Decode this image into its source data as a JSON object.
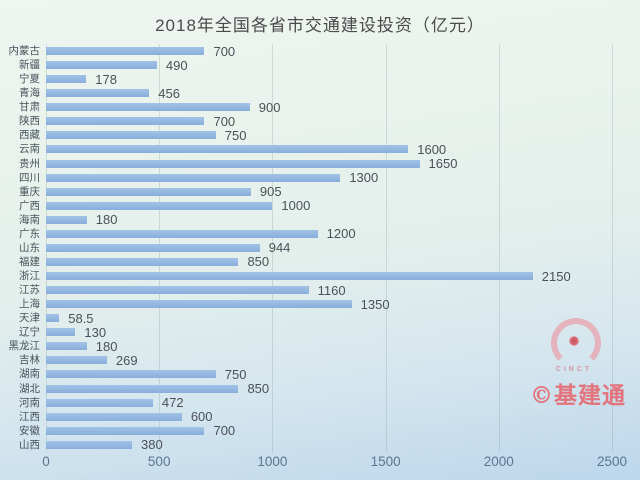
{
  "title": "2018年全国各省市交通建设投资（亿元）",
  "watermark": {
    "logo_name": "cinct-ring-logo",
    "logo_text": "CINCT",
    "label": "©基建通",
    "color": "#e3737c"
  },
  "chart_data": {
    "type": "bar",
    "orientation": "horizontal",
    "title": "2018年全国各省市交通建设投资（亿元）",
    "xlabel": "",
    "ylabel": "",
    "categories": [
      "内蒙古",
      "新疆",
      "宁夏",
      "青海",
      "甘肃",
      "陕西",
      "西藏",
      "云南",
      "贵州",
      "四川",
      "重庆",
      "广西",
      "海南",
      "广东",
      "山东",
      "福建",
      "浙江",
      "江苏",
      "上海",
      "天津",
      "辽宁",
      "黑龙江",
      "吉林",
      "湖南",
      "湖北",
      "河南",
      "江西",
      "安徽",
      "山西"
    ],
    "values": [
      700,
      490,
      178,
      456,
      900,
      700,
      750,
      1600,
      1650,
      1300,
      905,
      1000,
      180,
      1200,
      944,
      850,
      2150,
      1160,
      1350,
      58.5,
      130,
      180,
      269,
      750,
      850,
      472,
      600,
      700,
      380
    ],
    "value_labels": [
      "700",
      "490",
      "178",
      "456",
      "900",
      "700",
      "750",
      "1600",
      "1650",
      "1300",
      "905",
      "1000",
      "180",
      "1200",
      "944",
      "850",
      "2150",
      "1160",
      "1350",
      "58.5",
      "130",
      "180",
      "269",
      "750",
      "850",
      "472",
      "600",
      "700",
      "380"
    ],
    "xlim": [
      0,
      2500
    ],
    "x_ticks": [
      "0",
      "500",
      "1000",
      "1500",
      "2000",
      "2500"
    ],
    "grid": "vertical-only",
    "legend": "none",
    "bar_color": "#8fb3df",
    "background_gradient": [
      "#eff5f0",
      "#bcd6ec"
    ],
    "unit": "亿元"
  }
}
